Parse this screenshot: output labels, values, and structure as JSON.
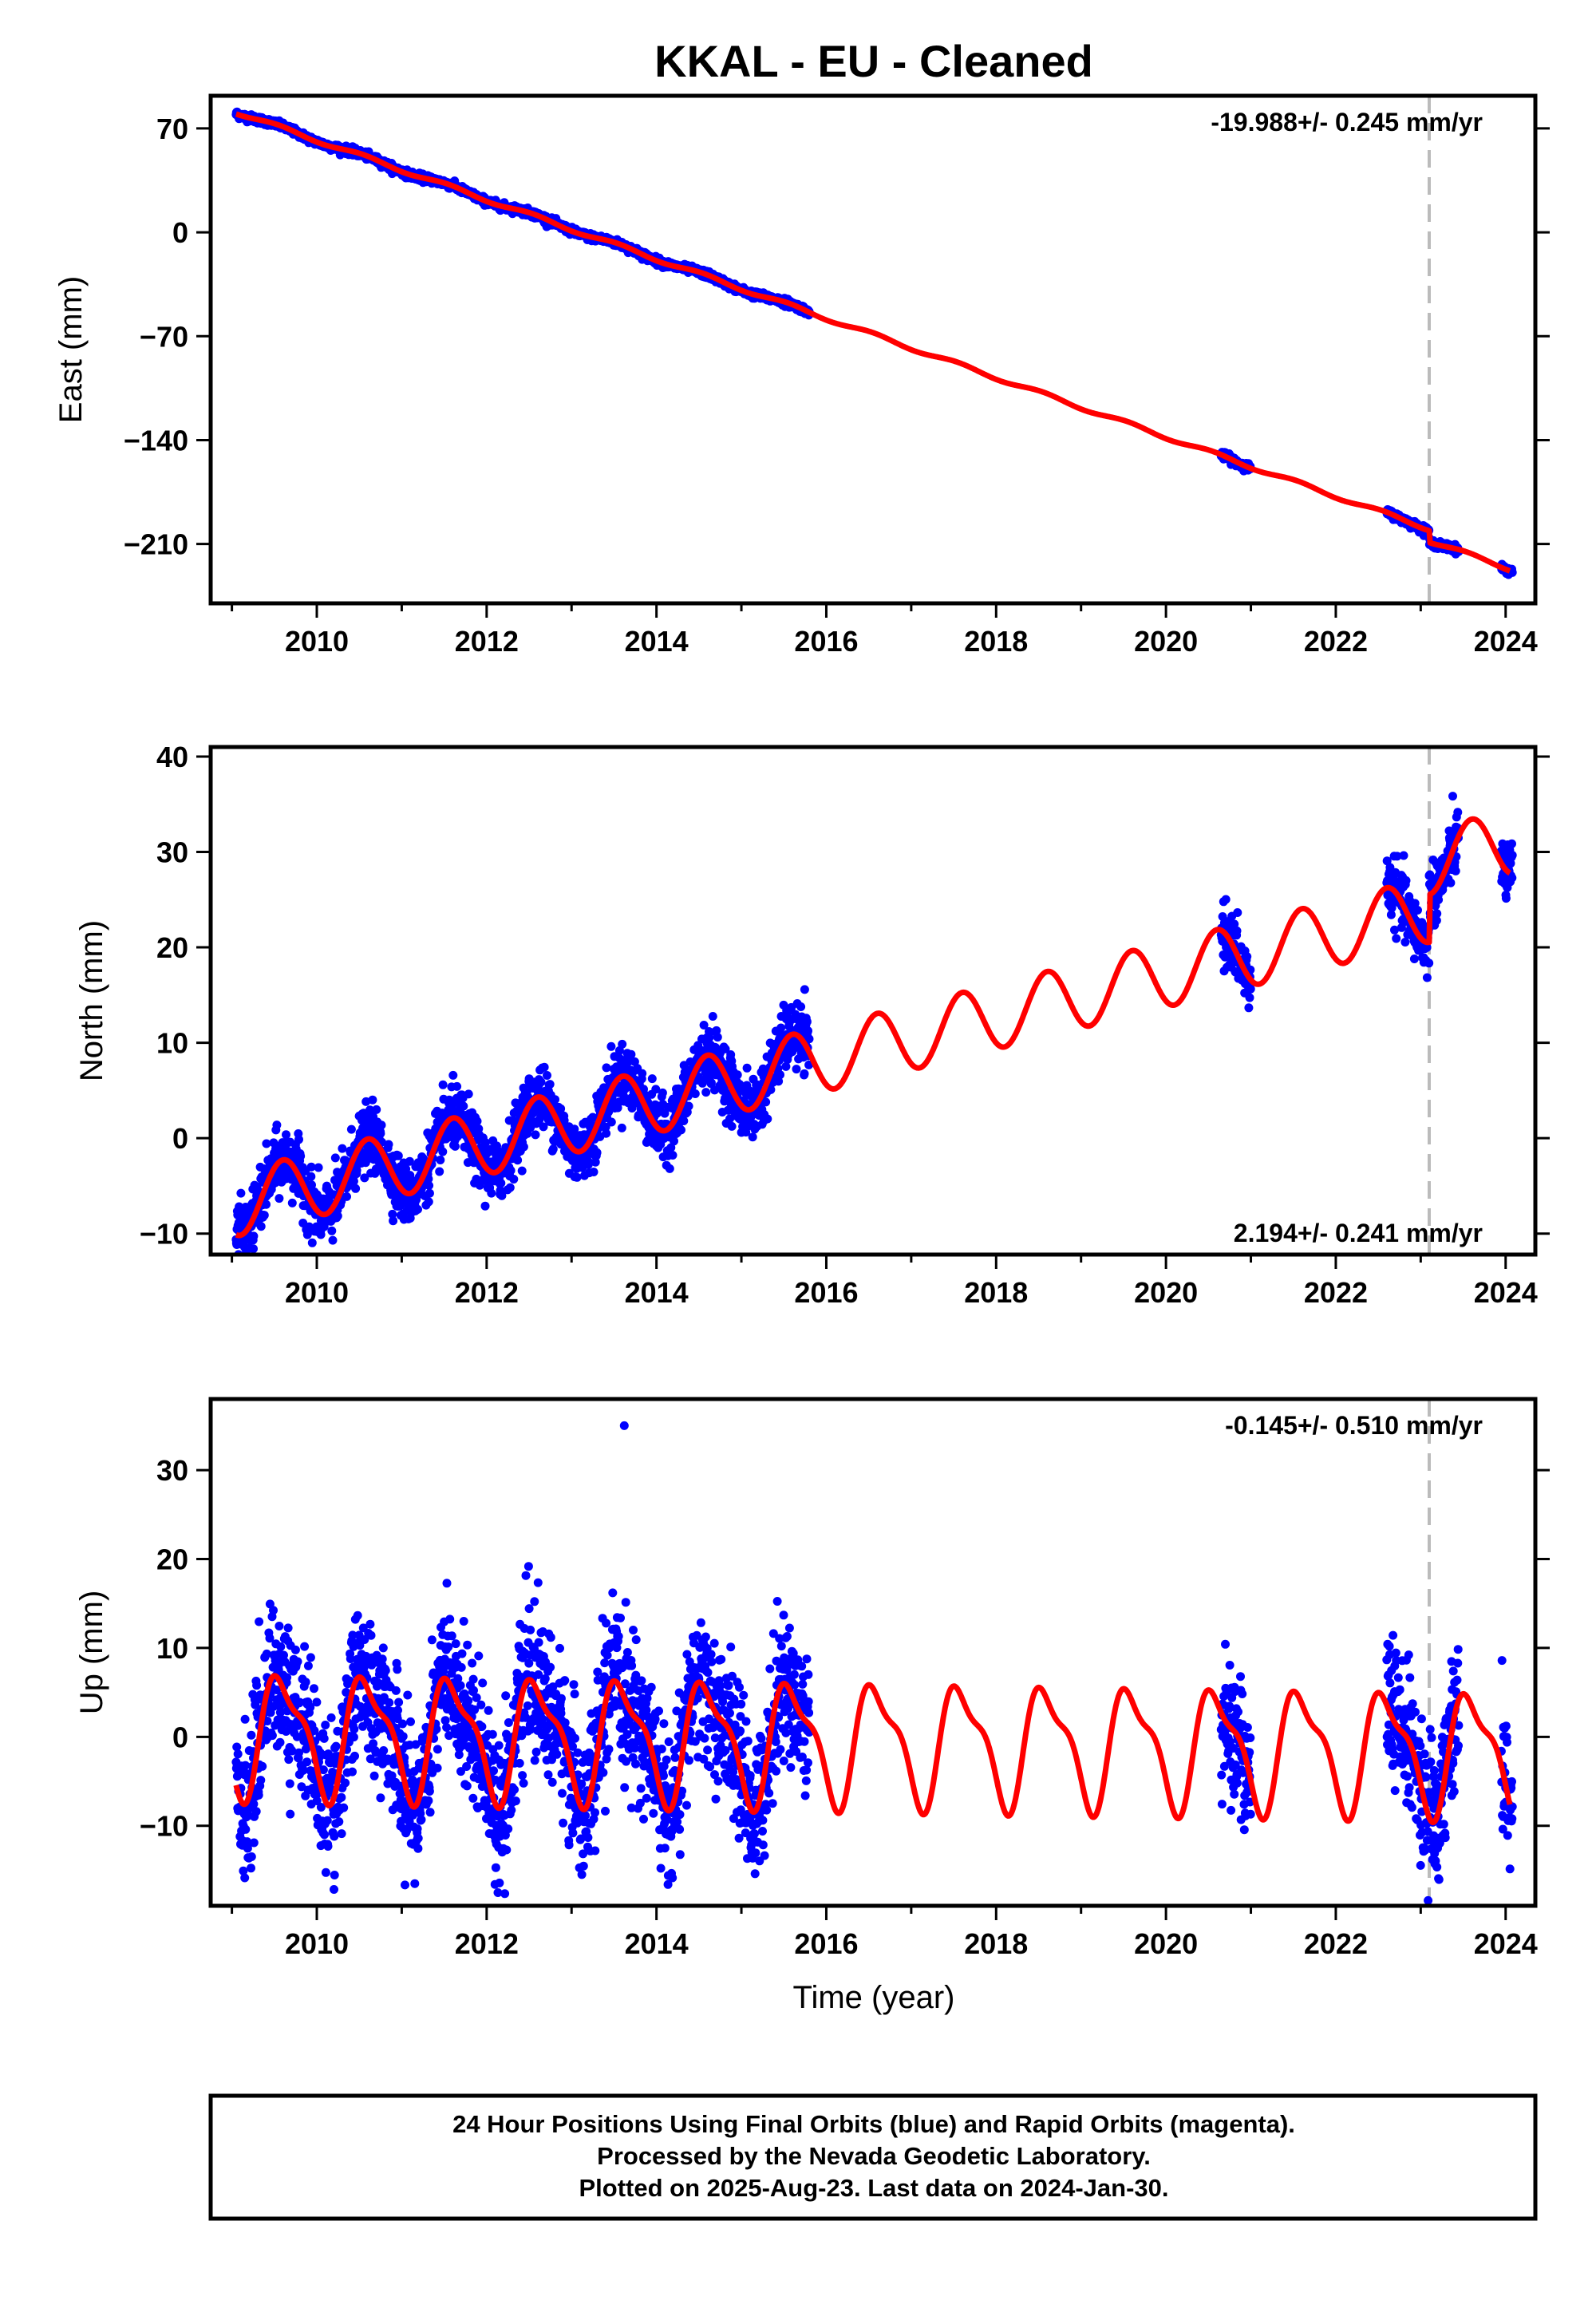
{
  "title": "KKAL  - EU - Cleaned",
  "xlabel": "Time (year)",
  "footer": {
    "line1": "24 Hour Positions Using Final Orbits (blue) and Rapid Orbits (magenta).",
    "line2": "Processed by the Nevada Geodetic Laboratory.",
    "line3": "Plotted on 2025-Aug-23. Last data on 2024-Jan-30."
  },
  "colors": {
    "observations": "#0000ff",
    "model": "#ff0000",
    "equipment_change": "#bbbbbb"
  },
  "chart_data": [
    {
      "type": "scatter",
      "name": "East",
      "ylabel": "East (mm)",
      "rate": "-19.988+/- 0.245 mm/yr",
      "rate_position": "top-right",
      "xlim": [
        2008.75,
        2024.35
      ],
      "ylim": [
        -250,
        92
      ],
      "xticks": [
        2010,
        2012,
        2014,
        2016,
        2018,
        2020,
        2022,
        2024
      ],
      "yticks": [
        70,
        0,
        -70,
        -140,
        -210
      ],
      "equipment_change": 2023.1,
      "observation_segments": [
        [
          2009.05,
          2015.8
        ],
        [
          2020.65,
          2021.0
        ],
        [
          2022.6,
          2023.45
        ],
        [
          2023.95,
          2024.08
        ]
      ],
      "model": {
        "type": "line",
        "trend_mm_per_yr": -19.988,
        "intercept_mm_at_2009": 82,
        "annual_amplitude_mm": 1.3,
        "annual_phase_year": 0.3,
        "offset_at_equipment_change_mm": -8,
        "range": [
          2009.05,
          2024.05
        ]
      }
    },
    {
      "type": "scatter",
      "name": "North",
      "ylabel": "North (mm)",
      "rate": "2.194+/- 0.241 mm/yr",
      "rate_position": "bottom-right",
      "xlim": [
        2008.75,
        2024.35
      ],
      "ylim": [
        -12.2,
        41
      ],
      "xticks": [
        2010,
        2012,
        2014,
        2016,
        2018,
        2020,
        2022,
        2024
      ],
      "yticks": [
        40,
        30,
        20,
        10,
        0,
        -10
      ],
      "equipment_change": 2023.1,
      "observation_segments": [
        [
          2009.05,
          2015.8
        ],
        [
          2020.65,
          2021.0
        ],
        [
          2022.6,
          2023.45
        ],
        [
          2023.95,
          2024.08
        ]
      ],
      "model": {
        "type": "line",
        "trend_mm_per_yr": 2.194,
        "intercept_mm_at_2009": -7,
        "annual_amplitude_mm": 3.4,
        "annual_phase_year": 0.35,
        "offset_at_equipment_change_mm": 5,
        "range": [
          2009.05,
          2024.05
        ]
      }
    },
    {
      "type": "scatter",
      "name": "Up",
      "ylabel": "Up (mm)",
      "rate": "-0.145+/- 0.510 mm/yr",
      "rate_position": "top-right",
      "xlim": [
        2008.75,
        2024.35
      ],
      "ylim": [
        -19,
        38
      ],
      "xticks": [
        2010,
        2012,
        2014,
        2016,
        2018,
        2020,
        2022,
        2024
      ],
      "yticks": [
        30,
        20,
        10,
        0,
        -10
      ],
      "equipment_change": 2023.1,
      "observation_segments": [
        [
          2009.05,
          2015.8
        ],
        [
          2020.65,
          2021.0
        ],
        [
          2022.6,
          2023.45
        ],
        [
          2023.95,
          2024.08
        ]
      ],
      "model": {
        "type": "line",
        "trend_mm_per_yr": -0.145,
        "intercept_mm_at_2009": 0.5,
        "annual_amplitude_mm": 6.3,
        "semiannual_amplitude_mm": 2.2,
        "annual_phase_year": 0.35,
        "offset_at_equipment_change_mm": 0,
        "range": [
          2009.05,
          2024.05
        ]
      }
    }
  ]
}
